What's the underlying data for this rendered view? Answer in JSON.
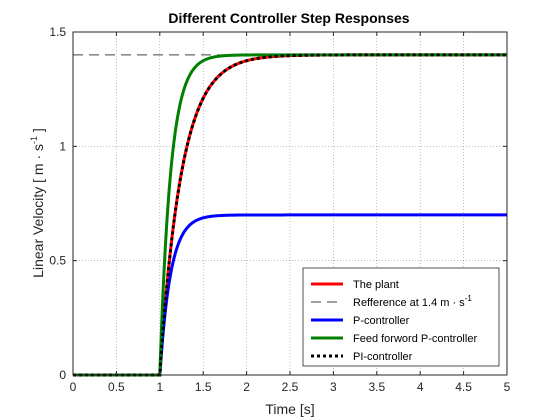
{
  "chart_data": {
    "type": "line",
    "title": "Different Controller Step Responses",
    "xlabel": "Time [s]",
    "ylabel": "Linear Velocity [ m · s",
    "ylabel_superscript": "-1",
    "ylabel_suffix": " ]",
    "xlim": [
      0,
      5
    ],
    "ylim": [
      0,
      1.5
    ],
    "xticks": [
      0,
      0.5,
      1,
      1.5,
      2,
      2.5,
      3,
      3.5,
      4,
      4.5,
      5
    ],
    "xtick_labels": [
      "0",
      "0.5",
      "1",
      "1.5",
      "2",
      "2.5",
      "3",
      "3.5",
      "4",
      "4.5",
      "5"
    ],
    "yticks": [
      0,
      0.5,
      1,
      1.5
    ],
    "ytick_labels": [
      "0",
      "0.5",
      "1",
      "1.5"
    ],
    "grid": true,
    "legend_position": "bottom-right",
    "step_time": 1,
    "series": [
      {
        "name": "The plant",
        "color": "#ff0000",
        "style": "solid",
        "final_value": 1.4,
        "time_constant": 0.25
      },
      {
        "name": "Refference at 1.4  m · s",
        "name_superscript": "-1",
        "color": "#404040",
        "style": "dashed",
        "constant": 1.4
      },
      {
        "name": "P-controller",
        "color": "#0000ff",
        "style": "solid",
        "final_value": 0.7,
        "time_constant": 0.125
      },
      {
        "name": "Feed forword P-controller",
        "color": "#008000",
        "style": "solid",
        "final_value": 1.4,
        "time_constant": 0.125
      },
      {
        "name": "PI-controller",
        "color": "#000000",
        "style": "dotted",
        "final_value": 1.4,
        "time_constant": 0.25
      }
    ]
  }
}
